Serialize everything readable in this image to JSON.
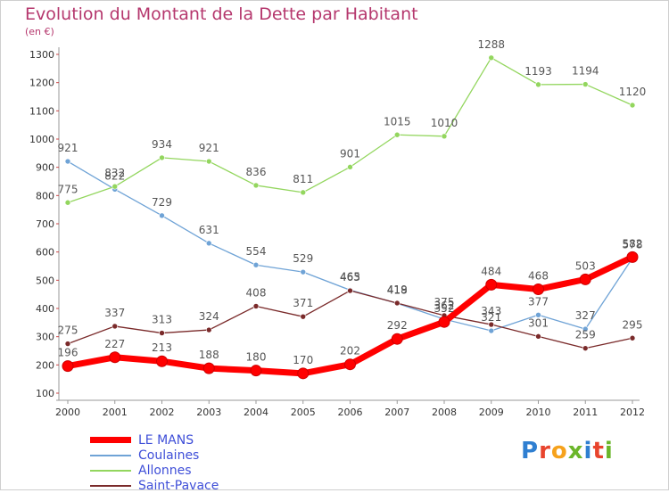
{
  "title": "Evolution du Montant de la Dette par Habitant",
  "subtitle": "(en €)",
  "logo": {
    "text": "Proxiti",
    "colors": [
      "#2f7fd1",
      "#e8442d",
      "#f6a21c",
      "#6bb62a",
      "#2f7fd1",
      "#e8442d",
      "#6bb62a"
    ]
  },
  "chart_data": {
    "type": "line",
    "x": [
      "2000",
      "2001",
      "2002",
      "2003",
      "2004",
      "2005",
      "2006",
      "2007",
      "2008",
      "2009",
      "2010",
      "2011",
      "2012"
    ],
    "ylim": [
      100,
      1300
    ],
    "yticks": [
      100,
      200,
      300,
      400,
      500,
      600,
      700,
      800,
      900,
      1000,
      1100,
      1200,
      1300
    ],
    "grid": false,
    "legend": "bottom-left",
    "series": [
      {
        "name": "LE MANS",
        "color": "#ff0000",
        "values": [
          196,
          227,
          213,
          188,
          180,
          170,
          202,
          292,
          352,
          484,
          468,
          503,
          582
        ]
      },
      {
        "name": "Coulaines",
        "color": "#6fa3d6",
        "values": [
          921,
          822,
          729,
          631,
          554,
          529,
          465,
          418,
          362,
          321,
          377,
          327,
          578
        ]
      },
      {
        "name": "Allonnes",
        "color": "#93d65e",
        "values": [
          775,
          832,
          934,
          921,
          836,
          811,
          901,
          1015,
          1010,
          1288,
          1193,
          1194,
          1120
        ]
      },
      {
        "name": "Saint-Pavace",
        "color": "#7a2a2a",
        "values": [
          275,
          337,
          313,
          324,
          408,
          371,
          463,
          419,
          375,
          343,
          301,
          259,
          295
        ]
      }
    ]
  }
}
